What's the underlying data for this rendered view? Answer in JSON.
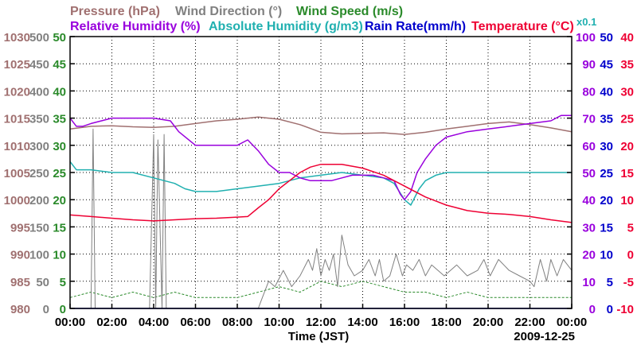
{
  "chart_data": {
    "type": "line",
    "date_label": "2009-12-25",
    "xlabel": "Time (JST)",
    "x_ticks": [
      "00:00",
      "02:00",
      "04:00",
      "06:00",
      "08:00",
      "10:00",
      "12:00",
      "14:00",
      "16:00",
      "18:00",
      "20:00",
      "22:00",
      "00:00"
    ],
    "xlim": [
      0,
      24
    ],
    "grid": true,
    "legend": {
      "row1": [
        {
          "key": "pressure",
          "text": "Pressure (hPa)",
          "color": "#a07070"
        },
        {
          "key": "wind_dir",
          "text": "Wind Direction (°)",
          "color": "#808080"
        },
        {
          "key": "wind_speed",
          "text": "Wind Speed (m/s)",
          "color": "#2a8a2a"
        }
      ],
      "row2": [
        {
          "key": "rh",
          "text": "Relative Humidity (%)",
          "color": "#9900dd"
        },
        {
          "key": "ah",
          "text": "Absolute Humidity (g/m3)",
          "color": "#20b0b0"
        },
        {
          "key": "rain",
          "text": "Rain Rate(mm/h)",
          "color": "#0000cc"
        },
        {
          "key": "temp",
          "text": "Temperature (°C)",
          "color": "#ee0033"
        }
      ],
      "ah_multiplier": "x0.1"
    },
    "axes": {
      "pressure": {
        "ticks": [
          "1030",
          "1025",
          "1020",
          "1015",
          "1010",
          "1005",
          "1000",
          "995",
          "990",
          "985",
          "980"
        ],
        "range": [
          980,
          1030
        ],
        "color": "#a07070"
      },
      "wind_dir": {
        "ticks": [
          "500",
          "450",
          "400",
          "350",
          "300",
          "250",
          "200",
          "150",
          "100",
          "50",
          "0"
        ],
        "range": [
          0,
          500
        ],
        "color": "#808080"
      },
      "wind_speed": {
        "ticks": [
          "50",
          "45",
          "40",
          "35",
          "30",
          "25",
          "20",
          "15",
          "10",
          "5",
          "0"
        ],
        "range": [
          0,
          50
        ],
        "color": "#2a8a2a"
      },
      "rh": {
        "ticks": [
          "100",
          "90",
          "80",
          "70",
          "60",
          "50",
          "40",
          "30",
          "20",
          "10",
          "0"
        ],
        "range": [
          0,
          100
        ],
        "color": "#9900dd"
      },
      "rain": {
        "ticks": [
          "50",
          "45",
          "40",
          "35",
          "30",
          "25",
          "20",
          "15",
          "10",
          "5",
          "0"
        ],
        "range": [
          0,
          50
        ],
        "color": "#0000cc"
      },
      "temp": {
        "ticks": [
          "40",
          "35",
          "30",
          "25",
          "20",
          "15",
          "10",
          "5",
          "0",
          "-5",
          "-10"
        ],
        "range": [
          -10,
          40
        ],
        "color": "#ee0033"
      }
    },
    "series": [
      {
        "key": "pressure",
        "name": "Pressure (hPa)",
        "color": "#a07070",
        "axis": "pressure",
        "x": [
          0,
          1,
          2,
          3,
          4,
          5,
          6,
          7,
          8,
          9,
          10,
          11,
          12,
          13,
          14,
          15,
          16,
          17,
          18,
          19,
          20,
          21,
          22,
          23,
          24
        ],
        "y": [
          1013,
          1013.5,
          1013.6,
          1013.4,
          1013.3,
          1013.5,
          1014,
          1014.5,
          1014.8,
          1015.2,
          1014.8,
          1013.8,
          1012.4,
          1012.1,
          1012.2,
          1012.3,
          1012,
          1012.4,
          1013,
          1013.5,
          1014,
          1014.3,
          1013.8,
          1013.2,
          1012.5
        ]
      },
      {
        "key": "rh",
        "name": "Relative Humidity (%)",
        "color": "#9900dd",
        "axis": "rh",
        "x": [
          0,
          0.3,
          0.6,
          1,
          1.5,
          2,
          3,
          4,
          4.8,
          5.2,
          6,
          7,
          8,
          8.5,
          9,
          9.5,
          10,
          10.5,
          11,
          11.5,
          12,
          12.5,
          13,
          13.5,
          14,
          14.5,
          15,
          15.5,
          15.8,
          16,
          16.3,
          16.6,
          17,
          17.5,
          18,
          19,
          20,
          21,
          22,
          23,
          23.5,
          24
        ],
        "y": [
          70,
          67,
          67,
          68,
          69,
          70,
          70,
          70,
          69,
          65,
          60,
          60,
          60,
          62,
          58,
          53,
          50,
          50,
          48,
          47,
          47,
          47,
          48,
          49,
          49,
          49,
          48,
          47,
          42,
          40,
          43,
          50,
          55,
          60,
          63,
          65,
          66,
          67,
          68,
          69,
          71,
          71
        ]
      },
      {
        "key": "ah",
        "name": "Absolute Humidity (g/m3)",
        "color": "#20b0b0",
        "axis": "rh",
        "x": [
          0,
          0.3,
          1,
          2,
          3,
          4,
          5,
          5.5,
          6,
          7,
          8,
          9,
          10,
          11,
          12,
          13,
          14,
          15,
          15.5,
          16,
          16.3,
          16.7,
          17,
          17.5,
          18,
          19,
          20,
          21,
          22,
          23,
          24
        ],
        "y": [
          54,
          51,
          51,
          50,
          50,
          48,
          46,
          44,
          43,
          43,
          44,
          45,
          46,
          48,
          49,
          50,
          49,
          48,
          46,
          40,
          38,
          44,
          47,
          49,
          50,
          50,
          50,
          50,
          50,
          50,
          50
        ]
      },
      {
        "key": "temp",
        "name": "Temperature (°C)",
        "color": "#ee0033",
        "axis": "temp",
        "x": [
          0,
          1,
          2,
          3,
          4,
          5,
          6,
          7,
          8,
          8.5,
          9,
          9.5,
          10,
          10.5,
          11,
          11.5,
          12,
          13,
          14,
          15,
          16,
          17,
          18,
          19,
          20,
          21,
          22,
          23,
          24
        ],
        "y": [
          7.2,
          6.9,
          6.6,
          6.3,
          6.1,
          6.3,
          6.5,
          6.6,
          6.8,
          6.9,
          8.5,
          10,
          12,
          13.5,
          15,
          16,
          16.5,
          16.5,
          15.8,
          14.5,
          12.5,
          10.5,
          9,
          8,
          7.5,
          7.3,
          6.9,
          6.3,
          5.8
        ]
      },
      {
        "key": "wind_dir",
        "name": "Wind Direction (°)",
        "color": "#808080",
        "axis": "wind_dir",
        "x": [
          0,
          1.0,
          1.1,
          1.2,
          1.4,
          3.8,
          4.0,
          4.1,
          4.2,
          4.4,
          4.5,
          4.6,
          4.75,
          4.9,
          5.0,
          6,
          9.0,
          9.2,
          9.5,
          9.8,
          10.2,
          10.6,
          11.0,
          11.4,
          11.6,
          11.8,
          12.0,
          12.2,
          12.4,
          12.6,
          12.8,
          13.0,
          13.3,
          13.6,
          14.0,
          14.3,
          14.6,
          14.8,
          15.0,
          15.3,
          15.6,
          15.9,
          16.1,
          16.4,
          16.7,
          17.0,
          17.3,
          17.6,
          17.9,
          18.2,
          18.5,
          19.0,
          19.5,
          19.8,
          20.1,
          20.5,
          21.0,
          21.5,
          22.0,
          22.2,
          22.5,
          22.8,
          23.0,
          23.3,
          23.6,
          24
        ],
        "y": [
          0,
          0,
          330,
          0,
          0,
          0,
          320,
          0,
          310,
          0,
          320,
          0,
          0,
          0,
          0,
          0,
          0,
          20,
          50,
          40,
          70,
          40,
          60,
          90,
          70,
          110,
          60,
          90,
          70,
          100,
          40,
          135,
          80,
          60,
          70,
          90,
          60,
          90,
          50,
          60,
          100,
          60,
          80,
          70,
          90,
          60,
          80,
          70,
          60,
          70,
          80,
          60,
          70,
          90,
          60,
          90,
          70,
          60,
          50,
          40,
          90,
          50,
          90,
          60,
          90,
          70
        ]
      },
      {
        "key": "wind_speed",
        "name": "Wind Speed (m/s)",
        "color": "#2a8a2a",
        "axis": "wind_speed",
        "x": [
          0,
          1,
          2,
          3,
          4,
          5,
          6,
          7,
          8,
          9,
          10,
          11,
          12,
          13,
          14,
          15,
          16,
          17,
          18,
          19,
          20,
          21,
          22,
          23,
          24
        ],
        "y": [
          2,
          3,
          2,
          3,
          2,
          3,
          2,
          2,
          2,
          3,
          4,
          3,
          5,
          4,
          5,
          4,
          3,
          3,
          2,
          3,
          2,
          2,
          2,
          2,
          2
        ]
      },
      {
        "key": "rain",
        "name": "Rain Rate(mm/h)",
        "color": "#0000cc",
        "axis": "rain",
        "x": [
          0,
          24
        ],
        "y": [
          0,
          0
        ]
      }
    ]
  }
}
